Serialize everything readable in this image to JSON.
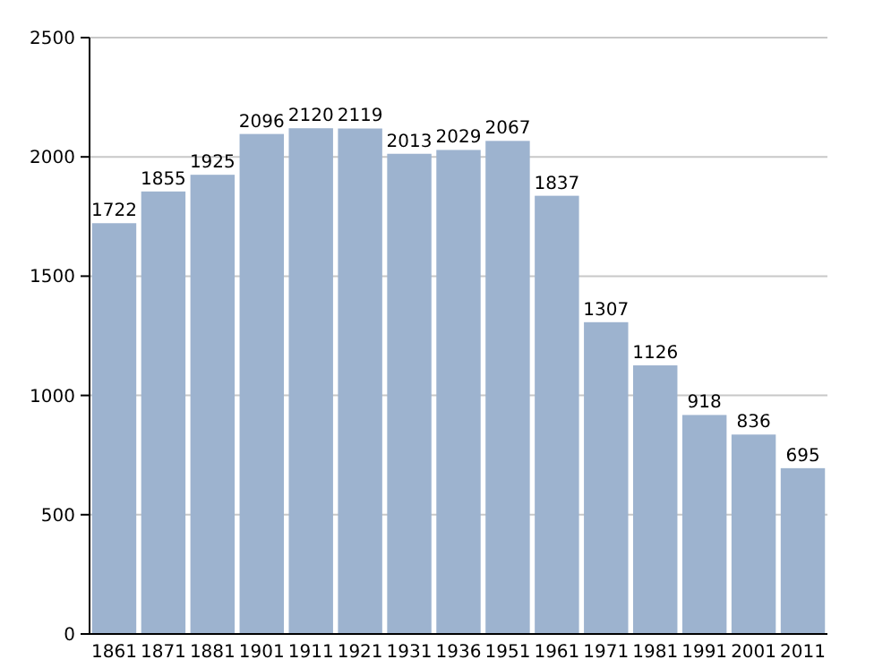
{
  "chart_data": {
    "type": "bar",
    "categories": [
      "1861",
      "1871",
      "1881",
      "1901",
      "1911",
      "1921",
      "1931",
      "1936",
      "1951",
      "1961",
      "1971",
      "1981",
      "1991",
      "2001",
      "2011"
    ],
    "values": [
      1722,
      1855,
      1925,
      2096,
      2120,
      2119,
      2013,
      2029,
      2067,
      1837,
      1307,
      1126,
      918,
      836,
      695
    ],
    "color": "#9db3cf",
    "ylim": [
      0,
      2500
    ],
    "yticks": [
      0,
      500,
      1000,
      1500,
      2000,
      2500
    ],
    "grid": "y",
    "data_labels": true
  }
}
